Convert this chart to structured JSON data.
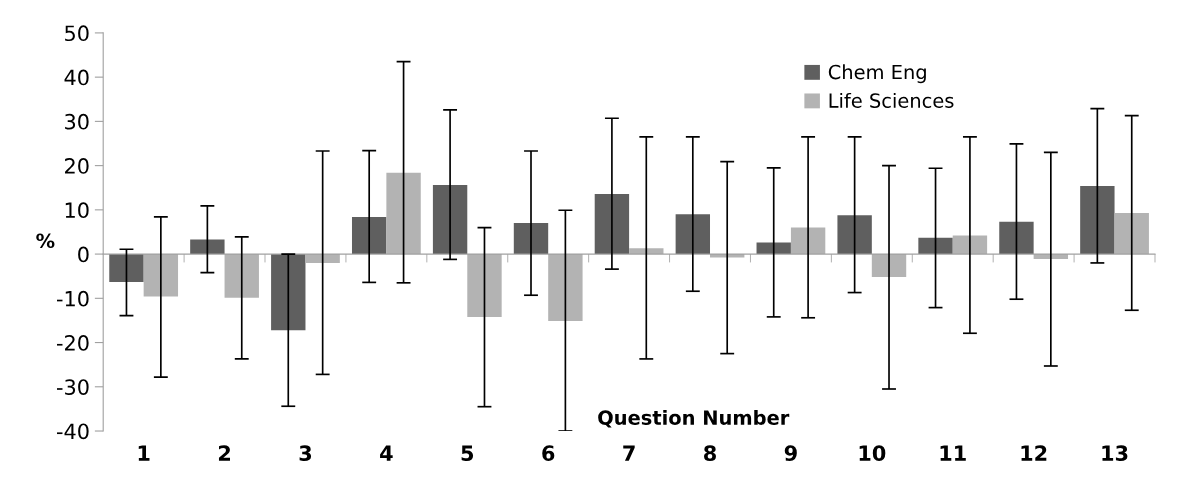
{
  "chart_data": {
    "type": "bar",
    "xlabel": "Question Number",
    "ylabel": "%",
    "categories": [
      "1",
      "2",
      "3",
      "4",
      "5",
      "6",
      "7",
      "8",
      "9",
      "10",
      "11",
      "12",
      "13"
    ],
    "series": [
      {
        "name": "Chem Eng",
        "color": "#5f5f5f",
        "values": [
          -6.3,
          3.3,
          -17.2,
          8.4,
          15.6,
          7.0,
          13.6,
          9.0,
          2.6,
          8.8,
          3.7,
          7.3,
          15.4
        ],
        "errors": [
          [
            -13.9,
            1.1
          ],
          [
            -4.2,
            10.9
          ],
          [
            -34.4,
            0.0
          ],
          [
            -6.4,
            23.4
          ],
          [
            -1.2,
            32.6
          ],
          [
            -9.3,
            23.3
          ],
          [
            -3.4,
            30.7
          ],
          [
            -8.4,
            26.5
          ],
          [
            -14.2,
            19.5
          ],
          [
            -8.7,
            26.5
          ],
          [
            -12.1,
            19.4
          ],
          [
            -10.2,
            24.9
          ],
          [
            -2.0,
            32.9
          ]
        ]
      },
      {
        "name": "Life Sciences",
        "color": "#b3b3b3",
        "values": [
          -9.6,
          -9.9,
          -2.0,
          18.4,
          -14.2,
          -15.1,
          1.3,
          -0.8,
          6.0,
          -5.2,
          4.2,
          -1.1,
          9.3
        ],
        "errors": [
          [
            -27.8,
            8.4
          ],
          [
            -23.7,
            3.9
          ],
          [
            -27.2,
            23.3
          ],
          [
            -6.5,
            43.5
          ],
          [
            -34.5,
            6.0
          ],
          [
            -40.0,
            9.9
          ],
          [
            -23.7,
            26.5
          ],
          [
            -22.5,
            20.9
          ],
          [
            -14.4,
            26.5
          ],
          [
            -30.5,
            20.0
          ],
          [
            -17.9,
            26.5
          ],
          [
            -25.3,
            23.0
          ],
          [
            -12.7,
            31.3
          ]
        ]
      }
    ],
    "ylim": [
      -40,
      50
    ],
    "yticks": [
      -40,
      -30,
      -20,
      -10,
      0,
      10,
      20,
      30,
      40,
      50
    ],
    "legend": "top right"
  }
}
